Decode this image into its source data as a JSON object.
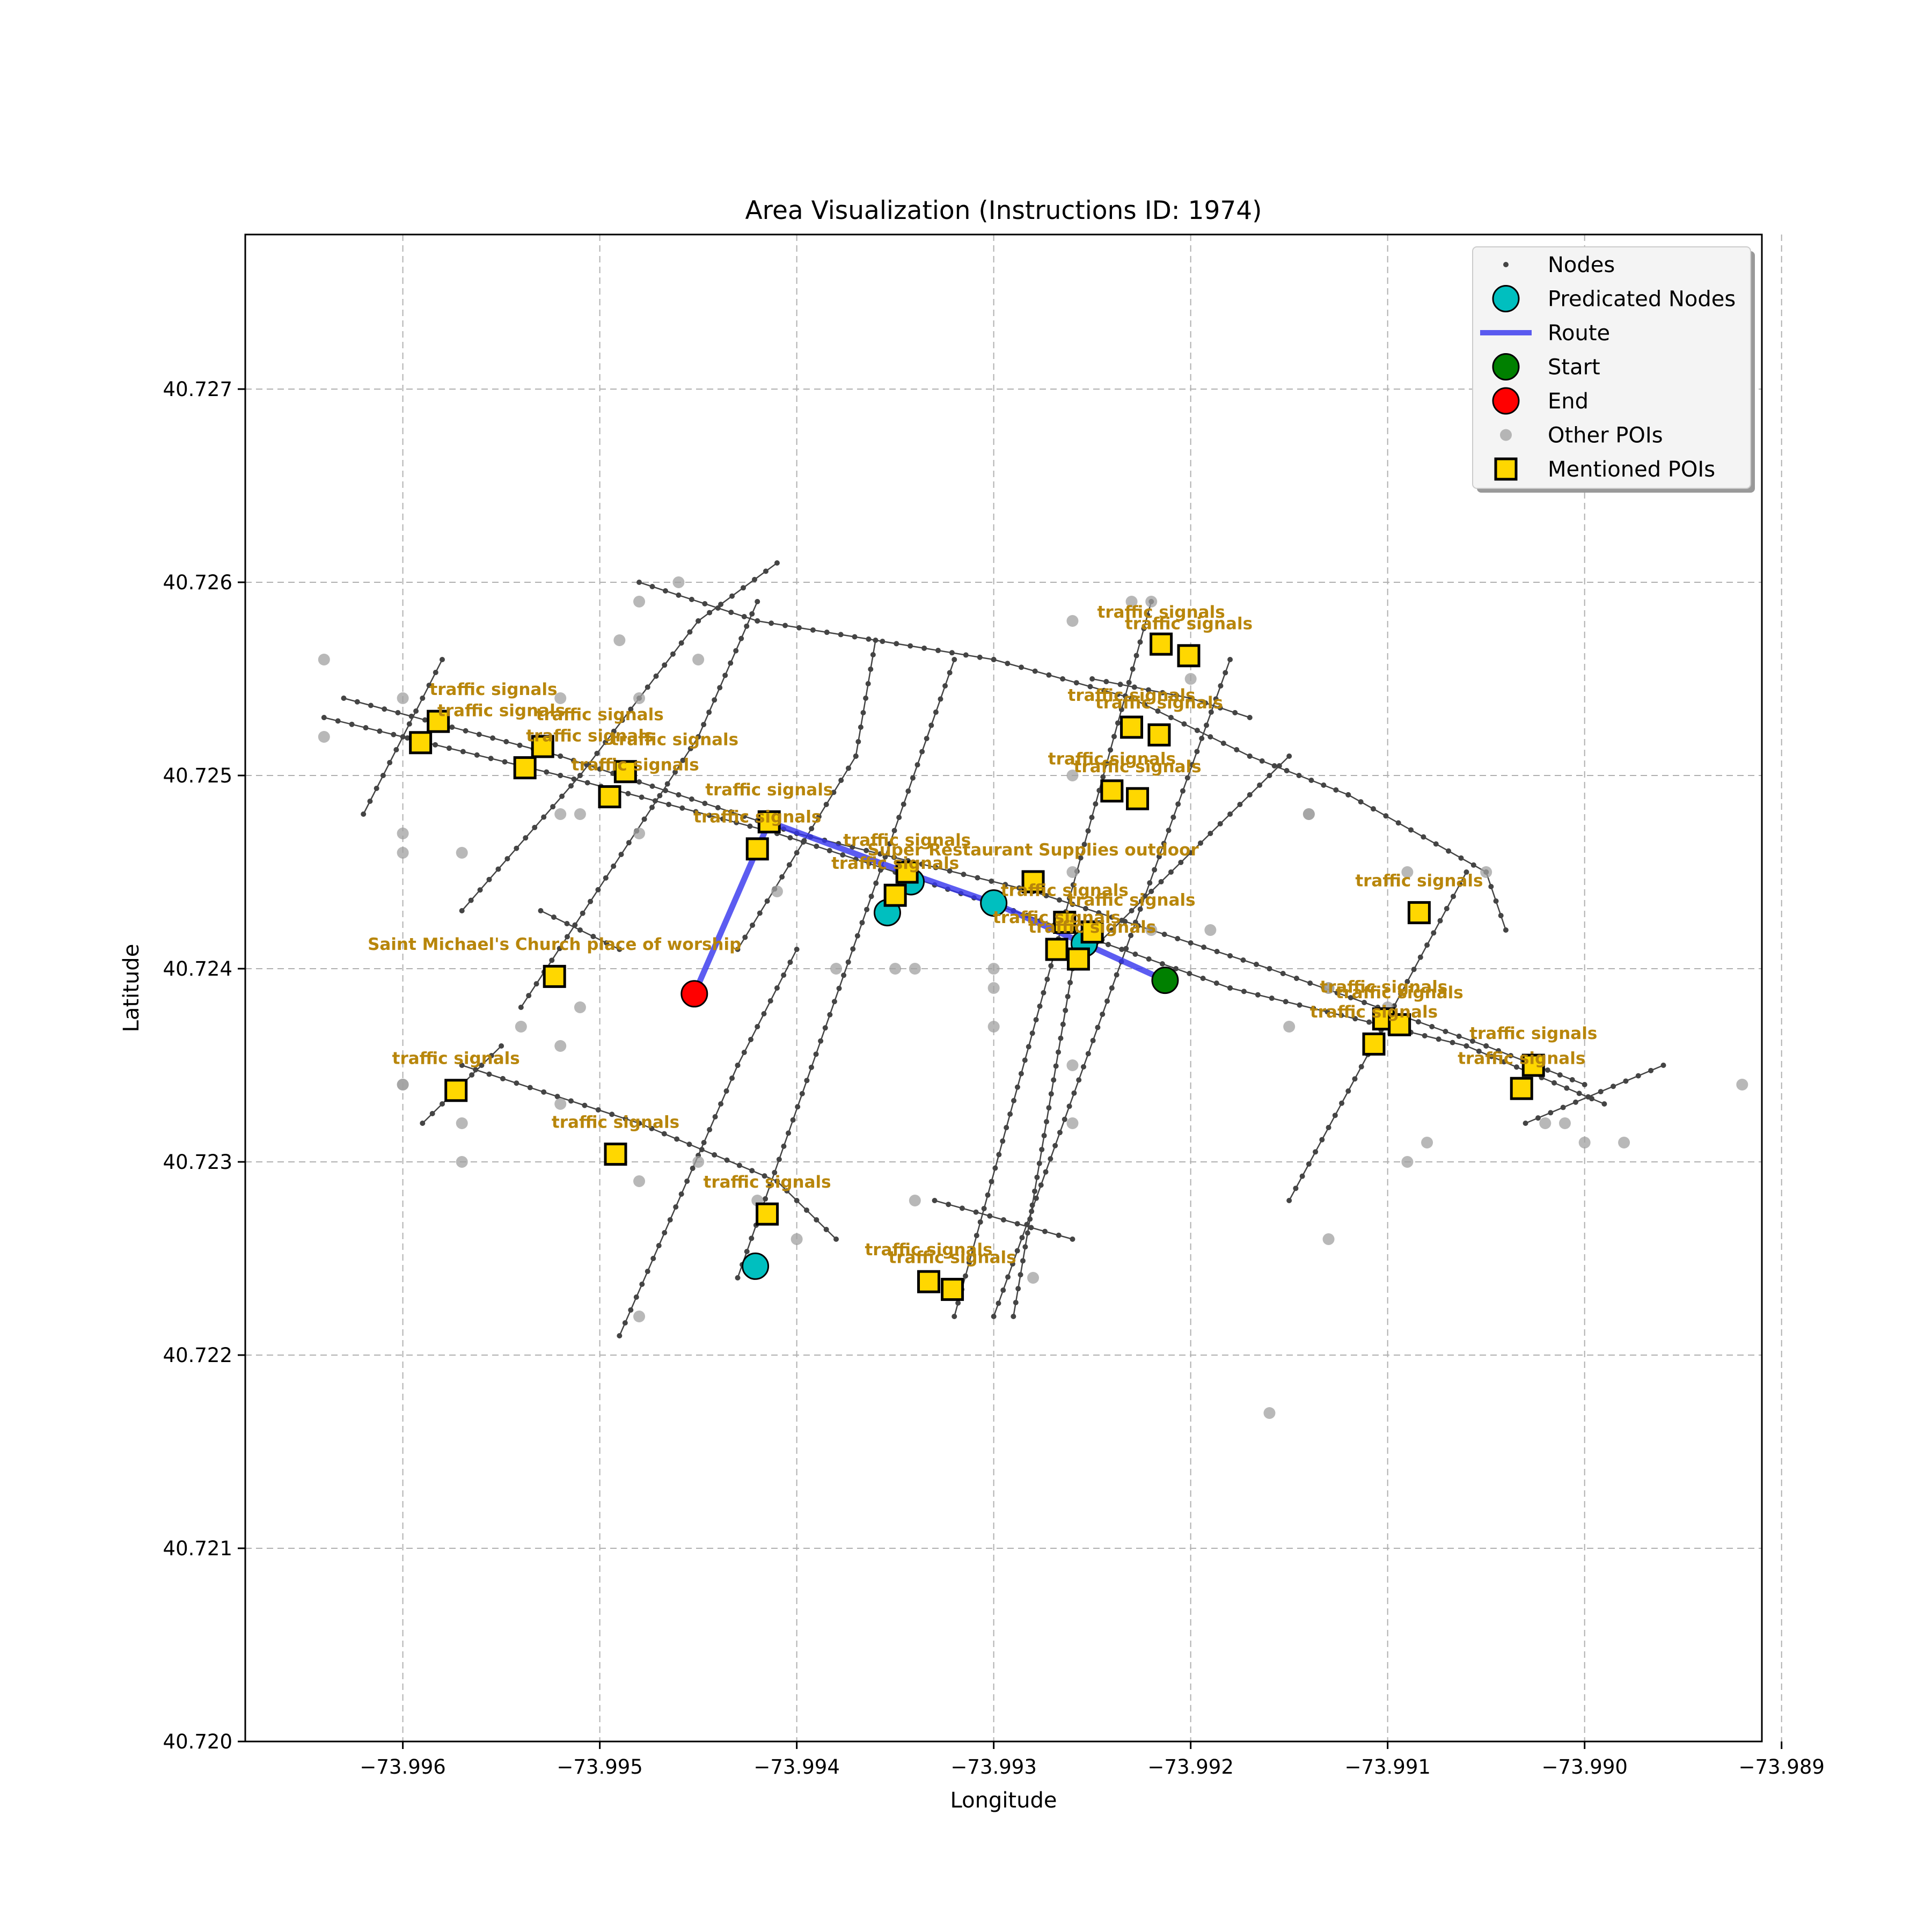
{
  "chart_data": {
    "type": "scatter",
    "title": "Area Visualization (Instructions ID: 1974)",
    "xlabel": "Longitude",
    "ylabel": "Latitude",
    "xlim": [
      -73.9968,
      -73.9891
    ],
    "ylim": [
      40.72,
      40.7278
    ],
    "x_ticks": [
      -73.996,
      -73.995,
      -73.994,
      -73.993,
      -73.992,
      -73.991,
      -73.99,
      -73.989
    ],
    "x_tick_labels": [
      "−73.996",
      "−73.995",
      "−73.994",
      "−73.993",
      "−73.992",
      "−73.991",
      "−73.990",
      "−73.989"
    ],
    "y_ticks": [
      40.72,
      40.721,
      40.722,
      40.723,
      40.724,
      40.725,
      40.726,
      40.727
    ],
    "y_tick_labels": [
      "40.720",
      "40.721",
      "40.722",
      "40.723",
      "40.724",
      "40.725",
      "40.726",
      "40.727"
    ],
    "grid": true,
    "legend_placement": "top-right",
    "legend": [
      {
        "key": "nodes",
        "label": "Nodes"
      },
      {
        "key": "predicated",
        "label": "Predicated Nodes"
      },
      {
        "key": "route",
        "label": "Route"
      },
      {
        "key": "start",
        "label": "Start"
      },
      {
        "key": "end",
        "label": "End"
      },
      {
        "key": "other_pois",
        "label": "Other POIs"
      },
      {
        "key": "mentioned_pois",
        "label": "Mentioned POIs"
      }
    ],
    "colors": {
      "nodes": "#444444",
      "predicated": "#00bfbf",
      "route": "#3333ee",
      "start": "#008000",
      "end": "#ff0000",
      "other_pois": "#a0a0a0",
      "mentioned_pois": "#ffd700",
      "poi_label": "#b8860b"
    },
    "streets": [
      [
        [
          -73.9963,
          40.7254
        ],
        [
          -73.9952,
          40.7251
        ],
        [
          -73.994,
          40.7247
        ],
        [
          -73.9928,
          40.7244
        ],
        [
          -73.9916,
          40.724
        ],
        [
          -73.9905,
          40.7236
        ],
        [
          -73.99,
          40.7234
        ]
      ],
      [
        [
          -73.9964,
          40.7253
        ],
        [
          -73.9952,
          40.725
        ],
        [
          -73.9941,
          40.7247
        ],
        [
          -73.9929,
          40.7243
        ],
        [
          -73.9918,
          40.7239
        ],
        [
          -73.9906,
          40.7236
        ],
        [
          -73.9899,
          40.7233
        ]
      ],
      [
        [
          -73.9948,
          40.726
        ],
        [
          -73.9942,
          40.7258
        ],
        [
          -73.993,
          40.7256
        ],
        [
          -73.9923,
          40.7254
        ],
        [
          -73.9917,
          40.7251
        ],
        [
          -73.9912,
          40.7249
        ],
        [
          -73.9905,
          40.7245
        ],
        [
          -73.9904,
          40.7242
        ]
      ],
      [
        [
          -73.9925,
          40.7255
        ],
        [
          -73.992,
          40.7254
        ],
        [
          -73.9917,
          40.7253
        ]
      ],
      [
        [
          -73.9957,
          40.7235
        ],
        [
          -73.9948,
          40.7232
        ],
        [
          -73.9941,
          40.7229
        ],
        [
          -73.9938,
          40.7226
        ]
      ],
      [
        [
          -73.9933,
          40.7228
        ],
        [
          -73.9926,
          40.7226
        ]
      ],
      [
        [
          -73.9953,
          40.7243
        ],
        [
          -73.9949,
          40.7241
        ]
      ],
      [
        [
          -73.9962,
          40.7248
        ],
        [
          -73.9958,
          40.7256
        ]
      ],
      [
        [
          -73.9957,
          40.7243
        ],
        [
          -73.9951,
          40.725
        ],
        [
          -73.9945,
          40.7258
        ],
        [
          -73.9941,
          40.7261
        ]
      ],
      [
        [
          -73.9954,
          40.7238
        ],
        [
          -73.9945,
          40.7252
        ],
        [
          -73.9942,
          40.7259
        ]
      ],
      [
        [
          -73.9949,
          40.7221
        ],
        [
          -73.9943,
          40.7235
        ],
        [
          -73.994,
          40.7241
        ]
      ],
      [
        [
          -73.9943,
          40.7241
        ],
        [
          -73.9937,
          40.7251
        ],
        [
          -73.9936,
          40.7257
        ]
      ],
      [
        [
          -73.9943,
          40.7224
        ],
        [
          -73.9932,
          40.7256
        ]
      ],
      [
        [
          -73.9932,
          40.7222
        ],
        [
          -73.9922,
          40.7259
        ]
      ],
      [
        [
          -73.993,
          40.7222
        ],
        [
          -73.9918,
          40.7256
        ]
      ],
      [
        [
          -73.9929,
          40.7222
        ],
        [
          -73.9926,
          40.724
        ],
        [
          -73.9915,
          40.7251
        ]
      ],
      [
        [
          -73.9915,
          40.7228
        ],
        [
          -73.9906,
          40.7245
        ]
      ],
      [
        [
          -73.9903,
          40.7232
        ],
        [
          -73.9896,
          40.7235
        ]
      ],
      [
        [
          -73.9959,
          40.7232
        ],
        [
          -73.9955,
          40.7236
        ]
      ]
    ],
    "route": [
      [
        -73.99452,
        40.72387
      ],
      [
        -73.9942,
        40.72462
      ],
      [
        -73.99414,
        40.72476
      ],
      [
        -73.99345,
        40.7245
      ],
      [
        -73.993,
        40.72434
      ],
      [
        -73.99254,
        40.72413
      ],
      [
        -73.99213,
        40.72394
      ]
    ],
    "predicated_nodes": [
      [
        -73.99354,
        40.72429
      ],
      [
        -73.99342,
        40.72445
      ],
      [
        -73.993,
        40.72434
      ],
      [
        -73.99254,
        40.72413
      ],
      [
        -73.99421,
        40.72246
      ]
    ],
    "start": [
      -73.99213,
      40.72394
    ],
    "end": [
      -73.99452,
      40.72387
    ],
    "other_pois": [
      [
        -73.9964,
        40.7256
      ],
      [
        -73.9964,
        40.7252
      ],
      [
        -73.996,
        40.7254
      ],
      [
        -73.9958,
        40.7253
      ],
      [
        -73.9952,
        40.7254
      ],
      [
        -73.9949,
        40.7257
      ],
      [
        -73.9948,
        40.7259
      ],
      [
        -73.9948,
        40.7254
      ],
      [
        -73.9946,
        40.726
      ],
      [
        -73.9945,
        40.7256
      ],
      [
        -73.996,
        40.7247
      ],
      [
        -73.996,
        40.7246
      ],
      [
        -73.9957,
        40.7246
      ],
      [
        -73.9952,
        40.7248
      ],
      [
        -73.9951,
        40.7248
      ],
      [
        -73.9948,
        40.7247
      ],
      [
        -73.9942,
        40.7246
      ],
      [
        -73.9941,
        40.7244
      ],
      [
        -73.9951,
        40.7238
      ],
      [
        -73.9954,
        40.7237
      ],
      [
        -73.9952,
        40.7236
      ],
      [
        -73.9952,
        40.7233
      ],
      [
        -73.9957,
        40.7232
      ],
      [
        -73.996,
        40.7234
      ],
      [
        -73.996,
        40.7234
      ],
      [
        -73.9957,
        40.723
      ],
      [
        -73.9948,
        40.7229
      ],
      [
        -73.9945,
        40.723
      ],
      [
        -73.9948,
        40.7222
      ],
      [
        -73.9942,
        40.7228
      ],
      [
        -73.994,
        40.7226
      ],
      [
        -73.9938,
        40.724
      ],
      [
        -73.9935,
        40.724
      ],
      [
        -73.9934,
        40.724
      ],
      [
        -73.9934,
        40.7228
      ],
      [
        -73.993,
        40.7237
      ],
      [
        -73.993,
        40.7239
      ],
      [
        -73.993,
        40.724
      ],
      [
        -73.9928,
        40.7224
      ],
      [
        -73.9926,
        40.7258
      ],
      [
        -73.9926,
        40.725
      ],
      [
        -73.9926,
        40.7245
      ],
      [
        -73.9926,
        40.7235
      ],
      [
        -73.9926,
        40.7232
      ],
      [
        -73.9923,
        40.7259
      ],
      [
        -73.9922,
        40.7259
      ],
      [
        -73.9922,
        40.7242
      ],
      [
        -73.992,
        40.7255
      ],
      [
        -73.9919,
        40.7242
      ],
      [
        -73.9916,
        40.7217
      ],
      [
        -73.9915,
        40.7237
      ],
      [
        -73.9914,
        40.7248
      ],
      [
        -73.9914,
        40.7248
      ],
      [
        -73.9913,
        40.7226
      ],
      [
        -73.9913,
        40.7239
      ],
      [
        -73.9913,
        40.7239
      ],
      [
        -73.991,
        40.7238
      ],
      [
        -73.9909,
        40.7245
      ],
      [
        -73.9909,
        40.723
      ],
      [
        -73.9908,
        40.7231
      ],
      [
        -73.9905,
        40.7245
      ],
      [
        -73.9902,
        40.7232
      ],
      [
        -73.9901,
        40.7232
      ],
      [
        -73.99,
        40.7231
      ],
      [
        -73.9898,
        40.7231
      ],
      [
        -73.9892,
        40.7234
      ]
    ],
    "mentioned_pois": [
      {
        "name": "traffic signals",
        "x": -73.99591,
        "y": 40.72517,
        "lx": -73.9955,
        "ly": 40.72529
      },
      {
        "name": "traffic signals",
        "x": -73.99582,
        "y": 40.72528,
        "lx": -73.99554,
        "ly": 40.7254
      },
      {
        "name": "traffic signals",
        "x": -73.99529,
        "y": 40.72515,
        "lx": -73.995,
        "ly": 40.72527
      },
      {
        "name": "traffic signals",
        "x": -73.99538,
        "y": 40.72504,
        "lx": -73.99505,
        "ly": 40.72516
      },
      {
        "name": "traffic signals",
        "x": -73.99487,
        "y": 40.72502,
        "lx": -73.99462,
        "ly": 40.72514
      },
      {
        "name": "traffic signals",
        "x": -73.99495,
        "y": 40.72489,
        "lx": -73.99482,
        "ly": 40.72501
      },
      {
        "name": "traffic signals",
        "x": -73.99414,
        "y": 40.72476,
        "lx": -73.99414,
        "ly": 40.72488
      },
      {
        "name": "traffic signals",
        "x": -73.9942,
        "y": 40.72462,
        "lx": -73.9942,
        "ly": 40.72474
      },
      {
        "name": "traffic signals",
        "x": -73.99344,
        "y": 40.7245,
        "lx": -73.99344,
        "ly": 40.72462
      },
      {
        "name": "traffic signals",
        "x": -73.9935,
        "y": 40.72438,
        "lx": -73.9935,
        "ly": 40.7245
      },
      {
        "name": "Super Restaurant Supplies    outdoor",
        "x": -73.9928,
        "y": 40.72445,
        "lx": -73.9928,
        "ly": 40.72457
      },
      {
        "name": "traffic signals",
        "x": -73.99264,
        "y": 40.72424,
        "lx": -73.99264,
        "ly": 40.72436
      },
      {
        "name": "traffic signals",
        "x": -73.9925,
        "y": 40.72419,
        "lx": -73.9923,
        "ly": 40.72431
      },
      {
        "name": "traffic signals",
        "x": -73.99268,
        "y": 40.7241,
        "lx": -73.99268,
        "ly": 40.72422
      },
      {
        "name": "traffic signals",
        "x": -73.99257,
        "y": 40.72405,
        "lx": -73.9925,
        "ly": 40.72417
      },
      {
        "name": "traffic signals",
        "x": -73.99215,
        "y": 40.72568,
        "lx": -73.99215,
        "ly": 40.7258
      },
      {
        "name": "traffic signals",
        "x": -73.99201,
        "y": 40.72562,
        "lx": -73.99201,
        "ly": 40.72574
      },
      {
        "name": "traffic signals",
        "x": -73.9923,
        "y": 40.72525,
        "lx": -73.9923,
        "ly": 40.72537
      },
      {
        "name": "traffic signals",
        "x": -73.99216,
        "y": 40.72521,
        "lx": -73.99216,
        "ly": 40.72533
      },
      {
        "name": "traffic signals",
        "x": -73.9924,
        "y": 40.72492,
        "lx": -73.9924,
        "ly": 40.72504
      },
      {
        "name": "traffic signals",
        "x": -73.99227,
        "y": 40.72488,
        "lx": -73.99227,
        "ly": 40.725
      },
      {
        "name": "traffic signals",
        "x": -73.99084,
        "y": 40.72429,
        "lx": -73.99084,
        "ly": 40.72441
      },
      {
        "name": "Saint Michael's Church place of worship",
        "x": -73.99523,
        "y": 40.72396,
        "lx": -73.99523,
        "ly": 40.72408
      },
      {
        "name": "traffic signals",
        "x": -73.99102,
        "y": 40.72374,
        "lx": -73.99102,
        "ly": 40.72386
      },
      {
        "name": "traffic signals",
        "x": -73.99094,
        "y": 40.72371,
        "lx": -73.99094,
        "ly": 40.72383
      },
      {
        "name": "traffic signals",
        "x": -73.99107,
        "y": 40.72361,
        "lx": -73.99107,
        "ly": 40.72373
      },
      {
        "name": "traffic signals",
        "x": -73.99026,
        "y": 40.7235,
        "lx": -73.99026,
        "ly": 40.72362
      },
      {
        "name": "traffic signals",
        "x": -73.99032,
        "y": 40.72338,
        "lx": -73.99032,
        "ly": 40.72349
      },
      {
        "name": "traffic signals",
        "x": -73.99573,
        "y": 40.72337,
        "lx": -73.99573,
        "ly": 40.72349
      },
      {
        "name": "traffic signals",
        "x": -73.99492,
        "y": 40.72304,
        "lx": -73.99492,
        "ly": 40.72316
      },
      {
        "name": "traffic signals",
        "x": -73.99415,
        "y": 40.72273,
        "lx": -73.99415,
        "ly": 40.72285
      },
      {
        "name": "traffic signals",
        "x": -73.99333,
        "y": 40.72238,
        "lx": -73.99333,
        "ly": 40.7225
      },
      {
        "name": "traffic signals",
        "x": -73.99321,
        "y": 40.72234,
        "lx": -73.99321,
        "ly": 40.72246
      }
    ]
  }
}
